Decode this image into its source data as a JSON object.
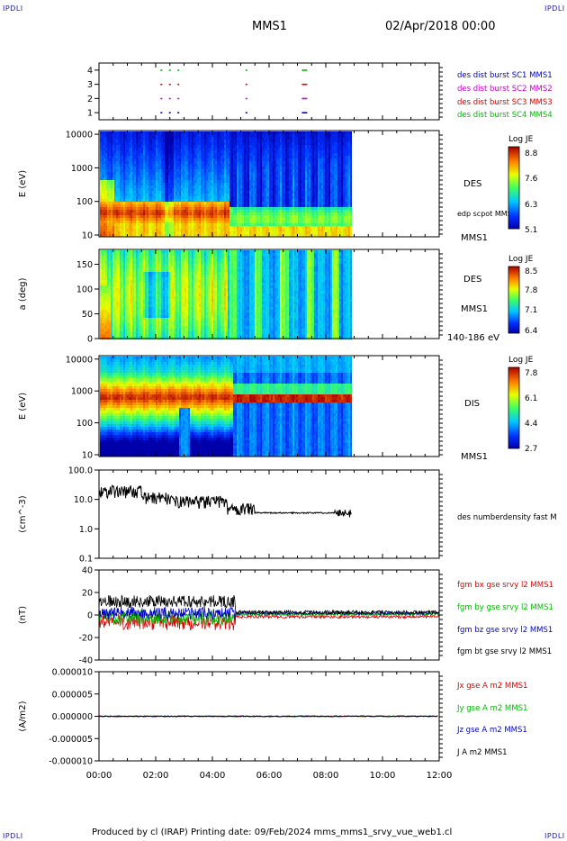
{
  "header": {
    "spacecraft": "MMS1",
    "datetime": "02/Apr/2018 00:00",
    "corner_left": "IPDLI",
    "corner_right": "IPDLI"
  },
  "footer": {
    "text": "Produced by cl (IRAP)   Printing date: 09/Feb/2024   mms_mms1_srvy_vue_web1.cl",
    "corner_left": "IPDLI",
    "corner_right": "IPDLI"
  },
  "time_axis": {
    "ticks": [
      "00:00",
      "02:00",
      "04:00",
      "06:00",
      "08:00",
      "10:00",
      "12:00"
    ]
  },
  "chart_data": [
    {
      "type": "scatter",
      "id": "burst",
      "ylim": [
        0.5,
        4.5
      ],
      "yticks": [
        "1",
        "2",
        "3",
        "4"
      ],
      "labels": [
        {
          "text": "des dist burst SC1 MMS1",
          "color": "#0000cc"
        },
        {
          "text": "des dist burst SC2 MMS2",
          "color": "#cc00cc"
        },
        {
          "text": "des dist burst SC3 MMS3",
          "color": "#dd0000"
        },
        {
          "text": "des dist burst SC4 MMS4",
          "color": "#00bb00"
        }
      ],
      "bursts_hours": [
        2.5,
        2.8,
        5.2,
        7.25
      ]
    },
    {
      "type": "heatmap",
      "id": "des_energy",
      "ylabel": "E (eV)",
      "yticks": [
        "10",
        "100",
        "1000",
        "10000"
      ],
      "side_labels": [
        "DES",
        "edp scpot MMS1",
        "MMS1"
      ],
      "colorbar": {
        "title": "Log JE",
        "ticks": [
          "8.8",
          "7.6",
          "6.3",
          "5.1"
        ]
      },
      "data_end_hour": 8.9
    },
    {
      "type": "heatmap",
      "id": "des_pitch",
      "ylabel": "a (deg)",
      "yticks": [
        "0",
        "50",
        "100",
        "150"
      ],
      "side_labels": [
        "DES",
        "MMS1",
        "140-186 eV"
      ],
      "colorbar": {
        "title": "Log JE",
        "ticks": [
          "8.5",
          "7.8",
          "7.1",
          "6.4"
        ]
      },
      "data_end_hour": 8.9
    },
    {
      "type": "heatmap",
      "id": "dis_energy",
      "ylabel": "E (eV)",
      "yticks": [
        "10",
        "100",
        "1000",
        "10000"
      ],
      "side_labels": [
        "DIS",
        "MMS1"
      ],
      "colorbar": {
        "title": "Log JE",
        "ticks": [
          "7.8",
          "6.1",
          "4.4",
          "2.7"
        ]
      },
      "data_end_hour": 8.9
    },
    {
      "type": "line",
      "id": "density",
      "ylabel": "(cm^-3)",
      "yticks": [
        "0.1",
        "1.0",
        "10.0",
        "100.0"
      ],
      "ylim": [
        0.1,
        100
      ],
      "log": true,
      "series": [
        {
          "name": "des numberdensity fast M",
          "color": "#000000"
        }
      ]
    },
    {
      "type": "line",
      "id": "fgm",
      "ylabel": "(nT)",
      "yticks": [
        "-40",
        "-20",
        "0",
        "20",
        "40"
      ],
      "ylim": [
        -50,
        50
      ],
      "series": [
        {
          "name": "fgm bx gse srvy l2 MMS1",
          "color": "#dd0000"
        },
        {
          "name": "fgm by gse srvy l2 MMS1",
          "color": "#00bb00"
        },
        {
          "name": "fgm bz gse srvy l2 MMS1",
          "color": "#0000cc"
        },
        {
          "name": "fgm bt gse srvy l2 MMS1",
          "color": "#000000"
        }
      ]
    },
    {
      "type": "line",
      "id": "current",
      "ylabel": "(A/m2)",
      "yticks": [
        "-0.000010",
        "-0.000005",
        "0.000000",
        "0.000005",
        "0.000010"
      ],
      "ylim": [
        -1e-05,
        1e-05
      ],
      "series": [
        {
          "name": "Jx gse A m2 MMS1",
          "color": "#dd0000"
        },
        {
          "name": "Jy gse A m2 MMS1",
          "color": "#00bb00"
        },
        {
          "name": "Jz gse A m2 MMS1",
          "color": "#0000cc"
        },
        {
          "name": "J A m2 MMS1",
          "color": "#000000"
        }
      ]
    }
  ]
}
